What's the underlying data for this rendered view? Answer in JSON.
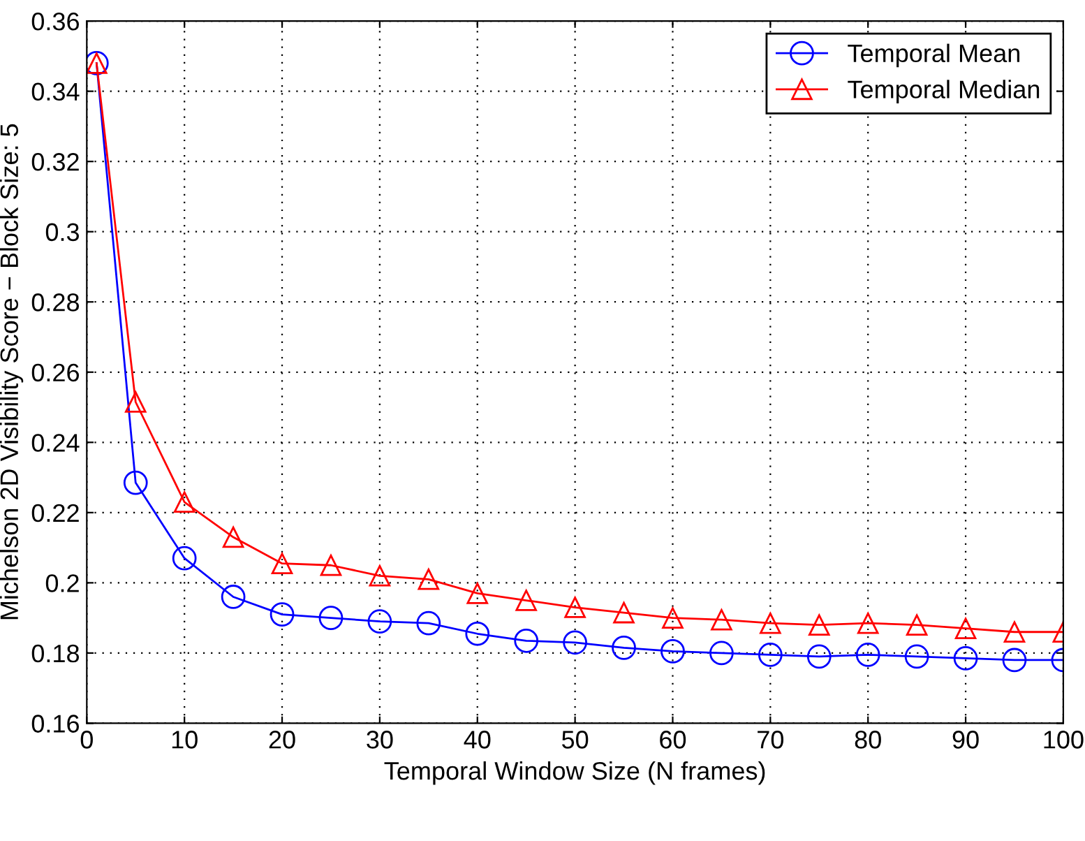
{
  "chart_data": {
    "type": "line",
    "xlabel": "Temporal Window Size (N frames)",
    "ylabel": "Michelson 2D Visibility Score − Block Size: 5",
    "x": [
      1,
      5,
      10,
      15,
      20,
      25,
      30,
      35,
      40,
      45,
      50,
      55,
      60,
      65,
      70,
      75,
      80,
      85,
      90,
      95,
      100
    ],
    "series": [
      {
        "name": "Temporal Mean",
        "color": "#0000ff",
        "marker": "circle",
        "values": [
          0.348,
          0.2285,
          0.207,
          0.196,
          0.191,
          0.19,
          0.189,
          0.1885,
          0.1855,
          0.1835,
          0.183,
          0.1815,
          0.1805,
          0.18,
          0.1795,
          0.179,
          0.1795,
          0.179,
          0.1785,
          0.178,
          0.178
        ]
      },
      {
        "name": "Temporal Median",
        "color": "#ff0000",
        "marker": "triangle",
        "values": [
          0.348,
          0.2515,
          0.223,
          0.213,
          0.2055,
          0.205,
          0.202,
          0.201,
          0.197,
          0.195,
          0.193,
          0.1915,
          0.19,
          0.1895,
          0.1885,
          0.188,
          0.1885,
          0.188,
          0.187,
          0.186,
          0.186
        ]
      }
    ],
    "xlim": [
      0,
      100
    ],
    "xticks": [
      0,
      10,
      20,
      30,
      40,
      50,
      60,
      70,
      80,
      90,
      100
    ],
    "ylim": [
      0.16,
      0.36
    ],
    "yticks": [
      0.16,
      0.18,
      0.2,
      0.22,
      0.24,
      0.26,
      0.28,
      0.3,
      0.32,
      0.34,
      0.36
    ],
    "grid": true,
    "legend": "top right",
    "line_style": "solid"
  }
}
